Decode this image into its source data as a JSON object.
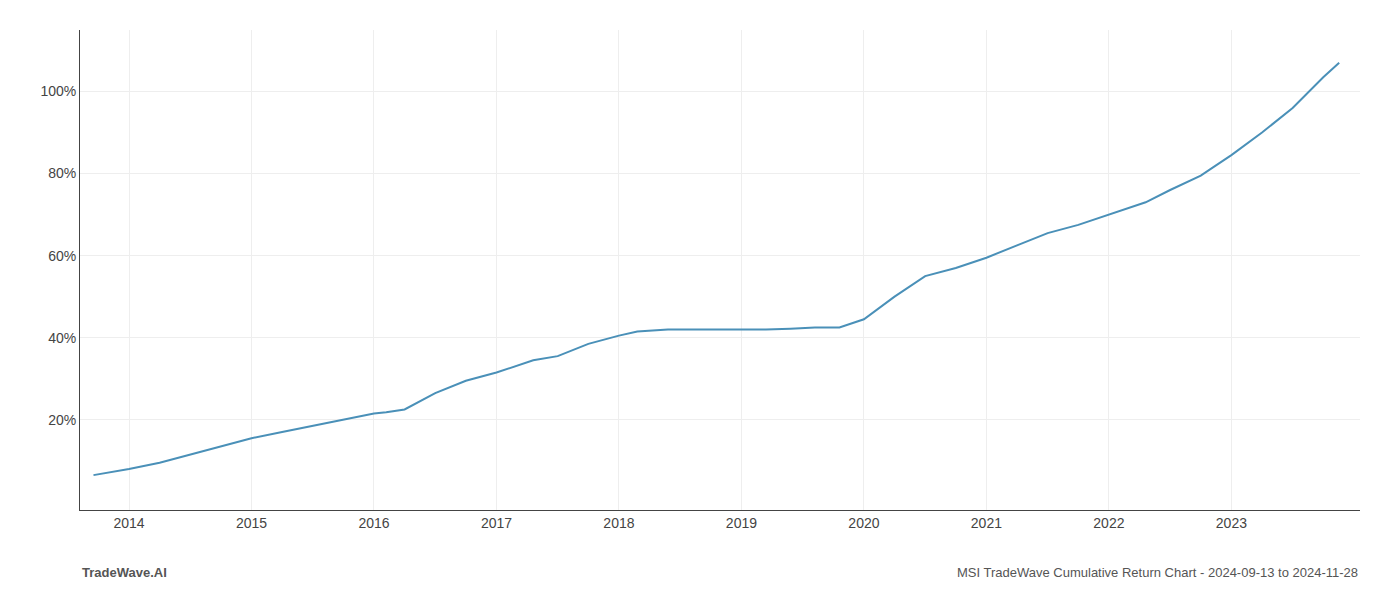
{
  "chart_data": {
    "type": "line",
    "x": [
      2013.71,
      2014.0,
      2014.25,
      2014.5,
      2014.75,
      2015.0,
      2015.25,
      2015.5,
      2015.75,
      2016.0,
      2016.1,
      2016.25,
      2016.5,
      2016.75,
      2017.0,
      2017.15,
      2017.3,
      2017.5,
      2017.75,
      2018.0,
      2018.15,
      2018.4,
      2018.6,
      2018.85,
      2019.0,
      2019.2,
      2019.4,
      2019.6,
      2019.8,
      2020.0,
      2020.25,
      2020.5,
      2020.75,
      2021.0,
      2021.25,
      2021.5,
      2021.75,
      2022.0,
      2022.15,
      2022.3,
      2022.5,
      2022.75,
      2022.85,
      2023.0,
      2023.25,
      2023.5,
      2023.75,
      2023.88
    ],
    "values": [
      6.5,
      8.0,
      9.5,
      11.5,
      13.5,
      15.5,
      17.0,
      18.5,
      20.0,
      21.5,
      21.8,
      22.5,
      26.5,
      29.5,
      31.5,
      33.0,
      34.5,
      35.5,
      38.5,
      40.5,
      41.5,
      42.0,
      42.0,
      42.0,
      42.0,
      42.0,
      42.2,
      42.5,
      42.5,
      44.5,
      50.0,
      55.0,
      57.0,
      59.5,
      62.5,
      65.5,
      67.5,
      70.0,
      71.5,
      73.0,
      76.0,
      79.5,
      81.5,
      84.5,
      90.0,
      96.0,
      103.5,
      107.0
    ],
    "color": "#4a90b8",
    "xlim": [
      2013.6,
      2024.05
    ],
    "xticks": [
      2014,
      2015,
      2016,
      2017,
      2018,
      2019,
      2020,
      2021,
      2022,
      2023
    ],
    "ylim": [
      -2,
      115
    ],
    "yticks": [
      {
        "value": 20,
        "label": "20%"
      },
      {
        "value": 40,
        "label": "40%"
      },
      {
        "value": 60,
        "label": "60%"
      },
      {
        "value": 80,
        "label": "80%"
      },
      {
        "value": 100,
        "label": "100%"
      }
    ],
    "grid": true,
    "annotations": [
      {
        "text": "TradeWave.AI"
      },
      {
        "text": "MSI TradeWave Cumulative Return Chart - 2024-09-13 to 2024-11-28"
      }
    ]
  }
}
